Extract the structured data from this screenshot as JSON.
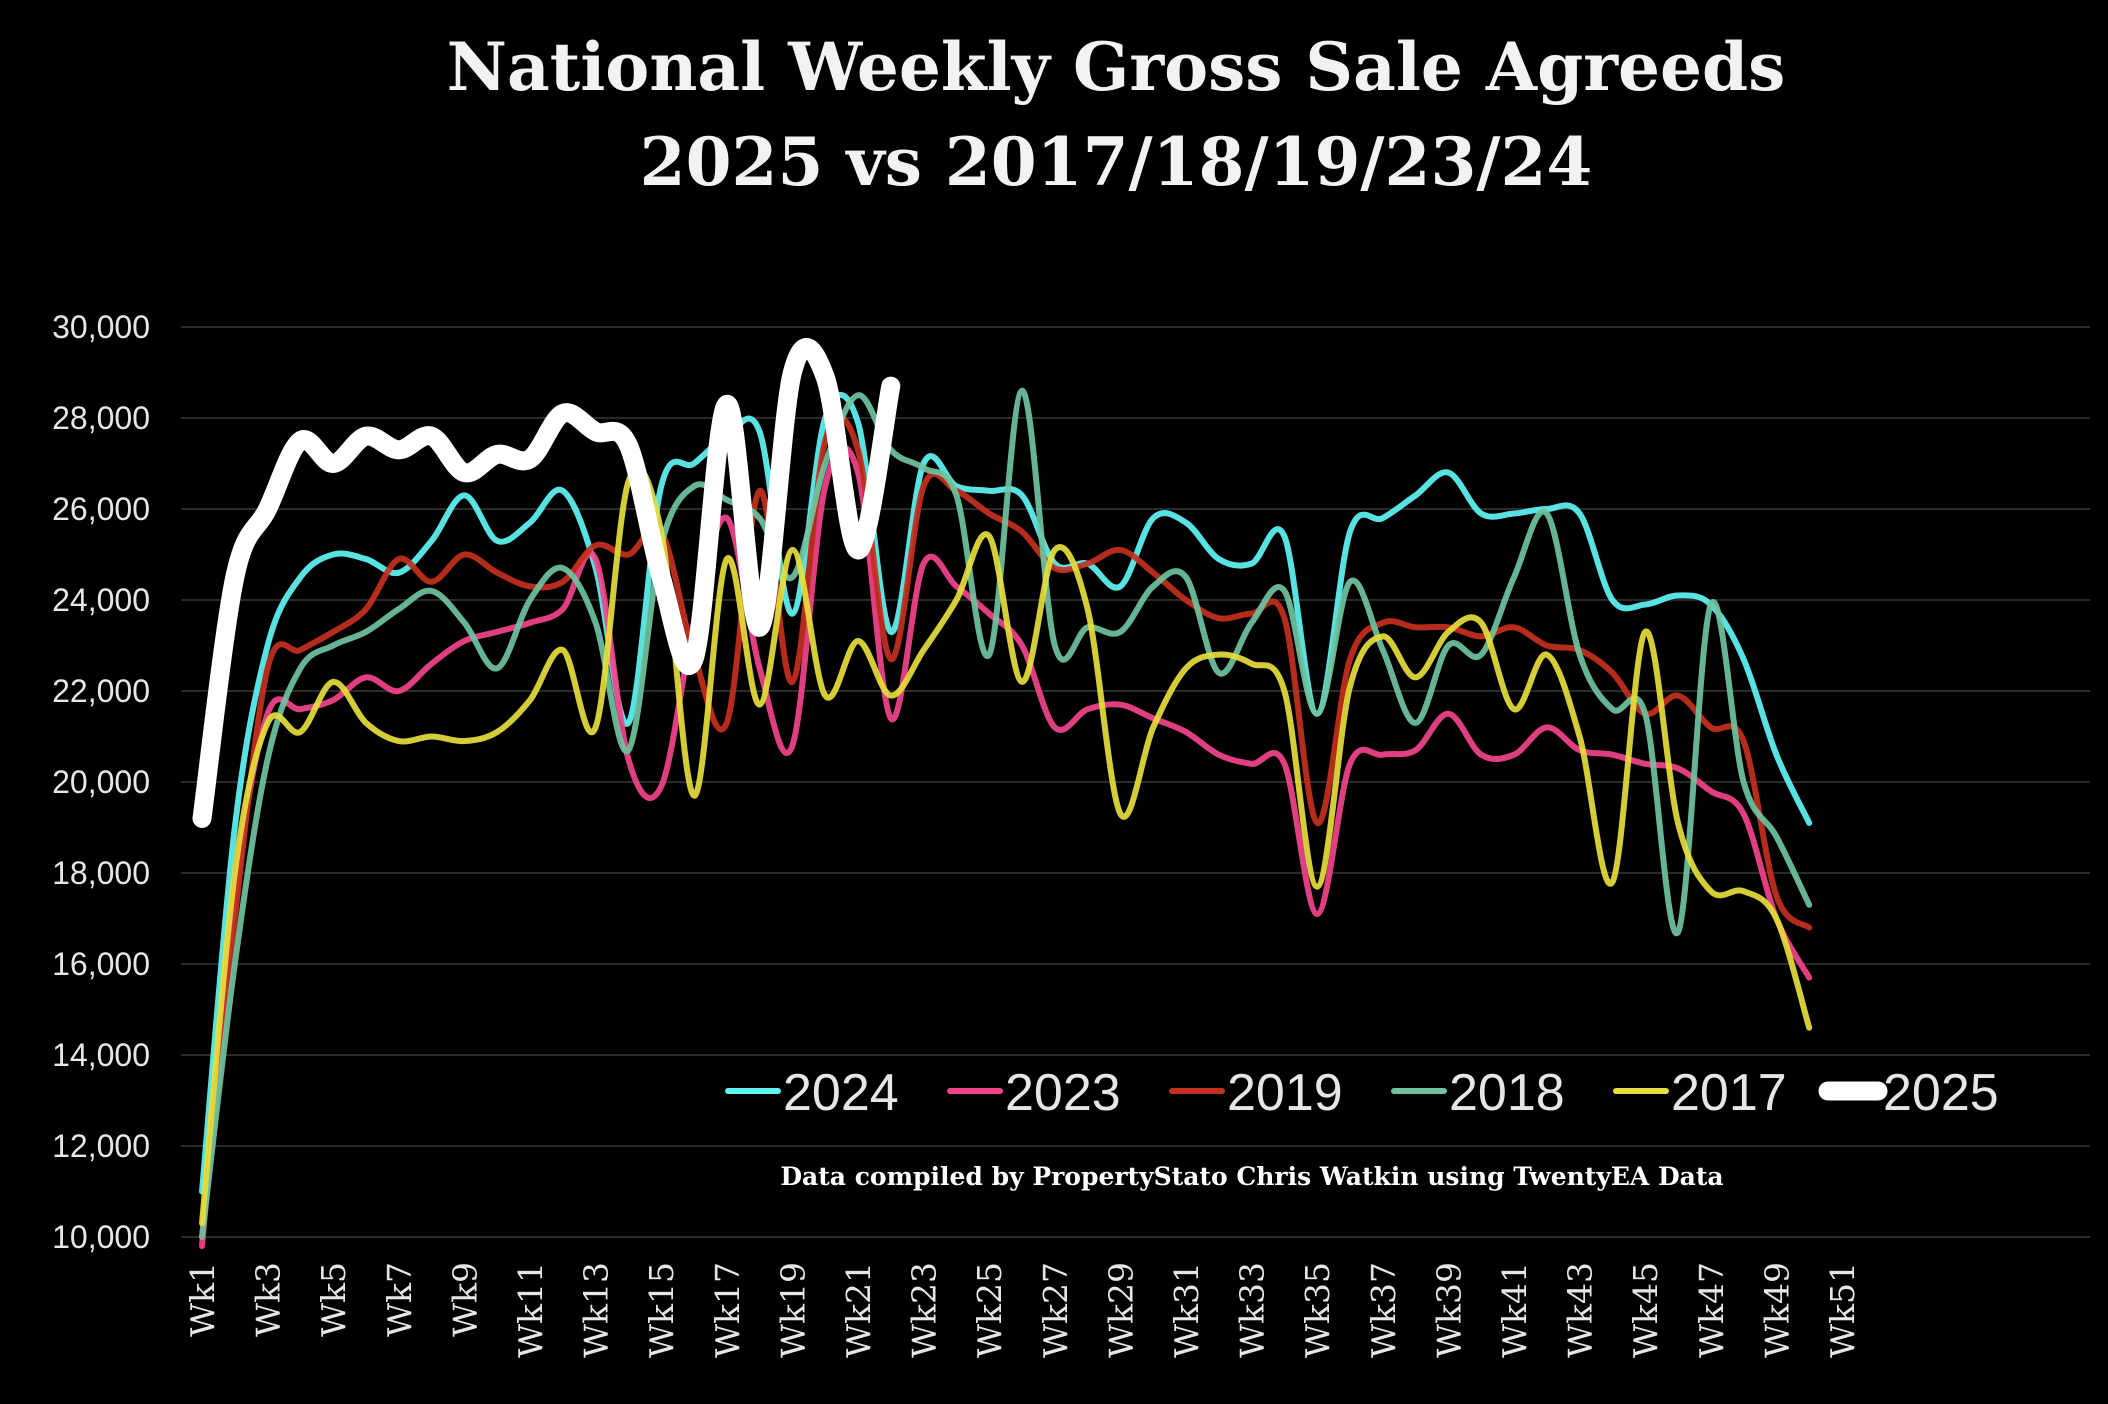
{
  "chart_data": {
    "type": "line",
    "title": [
      "National Weekly Gross Sale Agreeds",
      "2025 vs 2017/18/19/23/24"
    ],
    "credit": "Data compiled by PropertyStato Chris Watkin using TwentyEA Data",
    "xlabel": "",
    "ylabel": "",
    "ylim": [
      10000,
      30000
    ],
    "yticks": [
      "10,000",
      "12,000",
      "14,000",
      "16,000",
      "18,000",
      "20,000",
      "22,000",
      "24,000",
      "26,000",
      "28,000",
      "30,000"
    ],
    "ytick_values": [
      10000,
      12000,
      14000,
      16000,
      18000,
      20000,
      22000,
      24000,
      26000,
      28000,
      30000
    ],
    "xticks": [
      "Wk1",
      "Wk3",
      "Wk5",
      "Wk7",
      "Wk9",
      "Wk11",
      "Wk13",
      "Wk15",
      "Wk17",
      "Wk19",
      "Wk21",
      "Wk23",
      "Wk25",
      "Wk27",
      "Wk29",
      "Wk31",
      "Wk33",
      "Wk35",
      "Wk37",
      "Wk39",
      "Wk41",
      "Wk43",
      "Wk45",
      "Wk47",
      "Wk49",
      "Wk51"
    ],
    "xtick_weeks": [
      1,
      3,
      5,
      7,
      9,
      11,
      13,
      15,
      17,
      19,
      21,
      23,
      25,
      27,
      29,
      31,
      33,
      35,
      37,
      39,
      41,
      43,
      45,
      47,
      49,
      51
    ],
    "x_range": [
      1,
      51
    ],
    "grid": true,
    "legend_placement": "bottom-right",
    "series": [
      {
        "name": "2024",
        "color": "#5ff5f5",
        "values": [
          11000,
          19000,
          23000,
          24500,
          25000,
          24900,
          24600,
          25300,
          26300,
          25300,
          25700,
          26400,
          24700,
          21300,
          26500,
          27000,
          27600,
          27700,
          23700,
          28000,
          27900,
          23300,
          27000,
          26500,
          26400,
          26300,
          24800,
          24800,
          24300,
          25800,
          25700,
          24900,
          24800,
          25400,
          21500,
          25500,
          25800,
          26300,
          26800,
          25900,
          25900,
          26000,
          25900,
          24000,
          23900,
          24100,
          23900,
          22700,
          20600,
          19100
        ]
      },
      {
        "name": "2023",
        "color": "#f2448c",
        "values": [
          9800,
          17500,
          21500,
          21600,
          21800,
          22300,
          22000,
          22600,
          23100,
          23300,
          23500,
          23800,
          24900,
          20500,
          19900,
          23500,
          25800,
          22500,
          20800,
          26500,
          26800,
          21400,
          24800,
          24300,
          23700,
          23000,
          21200,
          21600,
          21700,
          21400,
          21100,
          20600,
          20400,
          20400,
          17100,
          20400,
          20600,
          20700,
          21500,
          20600,
          20600,
          21200,
          20700,
          20600,
          20400,
          20300,
          19800,
          19300,
          17000,
          15700
        ]
      },
      {
        "name": "2019",
        "color": "#c4301e",
        "values": [
          10000,
          17000,
          22500,
          22900,
          23300,
          23800,
          24900,
          24400,
          25000,
          24600,
          24300,
          24400,
          25200,
          25000,
          25500,
          22800,
          21300,
          26400,
          22200,
          27500,
          27300,
          22700,
          26500,
          26400,
          25900,
          25500,
          24700,
          24800,
          25100,
          24600,
          24000,
          23600,
          23700,
          23600,
          19100,
          22700,
          23500,
          23400,
          23400,
          23200,
          23400,
          23000,
          22900,
          22400,
          21500,
          21900,
          21200,
          20900,
          17500,
          16800
        ]
      },
      {
        "name": "2018",
        "color": "#6fc3a0",
        "values": [
          10000,
          16000,
          20500,
          22500,
          23000,
          23300,
          23800,
          24200,
          23500,
          22500,
          24000,
          24700,
          23500,
          20700,
          25200,
          26500,
          26200,
          25800,
          24500,
          27000,
          28500,
          27300,
          26900,
          26300,
          22800,
          28600,
          23000,
          23400,
          23300,
          24300,
          24500,
          22400,
          23500,
          24200,
          21500,
          24400,
          22900,
          21300,
          23000,
          22800,
          24500,
          25900,
          22800,
          21600,
          21500,
          16700,
          23900,
          20000,
          18800,
          17300
        ]
      },
      {
        "name": "2017",
        "color": "#e6de3c",
        "values": [
          10300,
          18000,
          21300,
          21100,
          22200,
          21300,
          20900,
          21000,
          20900,
          21100,
          21800,
          22900,
          21200,
          26600,
          25500,
          19700,
          24900,
          21700,
          25100,
          21900,
          23100,
          21900,
          22900,
          24000,
          25400,
          22200,
          25100,
          23800,
          19300,
          21200,
          22500,
          22800,
          22600,
          22000,
          17700,
          22100,
          23200,
          22300,
          23300,
          23500,
          21600,
          22800,
          21000,
          17800,
          23300,
          19100,
          17600,
          17600,
          17000,
          14600
        ]
      },
      {
        "name": "2025",
        "color": "#ffffff",
        "values": [
          19200,
          24500,
          26000,
          27500,
          27000,
          27600,
          27300,
          27600,
          26800,
          27200,
          27100,
          28100,
          27700,
          27400,
          24500,
          22700,
          28300,
          23400,
          29000,
          28900,
          25100,
          28700
        ]
      }
    ]
  }
}
